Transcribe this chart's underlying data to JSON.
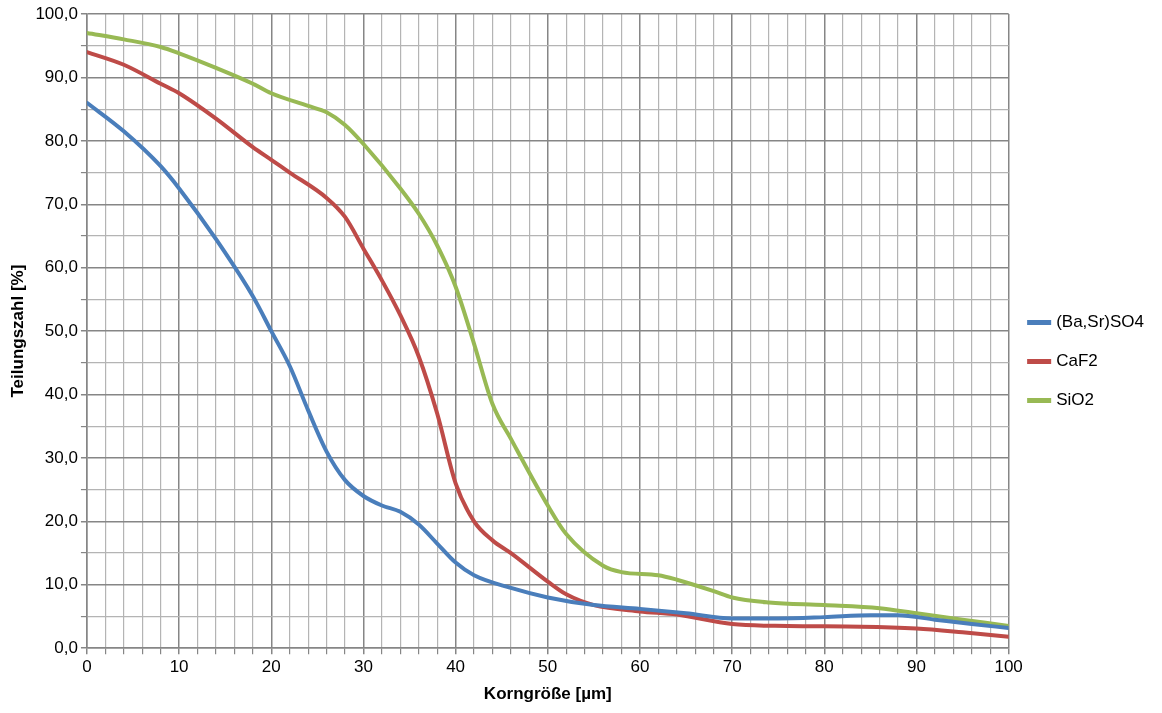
{
  "chart_data": {
    "type": "line",
    "xlabel": "Korngröße [µm]",
    "ylabel": "Teilungszahl [%]",
    "xlim": [
      0,
      100
    ],
    "ylim": [
      0,
      100
    ],
    "xticks": [
      0,
      {
        "value": 2,
        "label": null
      },
      {
        "value": 4,
        "label": null
      },
      {
        "value": 6,
        "label": null
      },
      {
        "value": 8,
        "label": null
      },
      10,
      {
        "value": 12,
        "label": null
      },
      {
        "value": 14,
        "label": null
      },
      {
        "value": 16,
        "label": null
      },
      {
        "value": 18,
        "label": null
      },
      20,
      {
        "value": 22,
        "label": null
      },
      {
        "value": 24,
        "label": null
      },
      {
        "value": 26,
        "label": null
      },
      {
        "value": 28,
        "label": null
      },
      30,
      {
        "value": 32,
        "label": null
      },
      {
        "value": 34,
        "label": null
      },
      {
        "value": 36,
        "label": null
      },
      {
        "value": 38,
        "label": null
      },
      40,
      {
        "value": 42,
        "label": null
      },
      {
        "value": 44,
        "label": null
      },
      {
        "value": 46,
        "label": null
      },
      {
        "value": 48,
        "label": null
      },
      50,
      {
        "value": 52,
        "label": null
      },
      {
        "value": 54,
        "label": null
      },
      {
        "value": 56,
        "label": null
      },
      {
        "value": 58,
        "label": null
      },
      60,
      {
        "value": 62,
        "label": null
      },
      {
        "value": 64,
        "label": null
      },
      {
        "value": 66,
        "label": null
      },
      {
        "value": 68,
        "label": null
      },
      70,
      {
        "value": 72,
        "label": null
      },
      {
        "value": 74,
        "label": null
      },
      {
        "value": 76,
        "label": null
      },
      {
        "value": 78,
        "label": null
      },
      80,
      {
        "value": 82,
        "label": null
      },
      {
        "value": 84,
        "label": null
      },
      {
        "value": 86,
        "label": null
      },
      {
        "value": 88,
        "label": null
      },
      90,
      {
        "value": 92,
        "label": null
      },
      {
        "value": 94,
        "label": null
      },
      {
        "value": 96,
        "label": null
      },
      {
        "value": 98,
        "label": null
      },
      100
    ],
    "yticks": [
      {
        "value": 0,
        "label": "0,0"
      },
      {
        "value": 5,
        "label": null
      },
      {
        "value": 10,
        "label": "10,0"
      },
      {
        "value": 15,
        "label": null
      },
      {
        "value": 20,
        "label": "20,0"
      },
      {
        "value": 25,
        "label": null
      },
      {
        "value": 30,
        "label": "30,0"
      },
      {
        "value": 35,
        "label": null
      },
      {
        "value": 40,
        "label": "40,0"
      },
      {
        "value": 45,
        "label": null
      },
      {
        "value": 50,
        "label": "50,0"
      },
      {
        "value": 55,
        "label": null
      },
      {
        "value": 60,
        "label": "60,0"
      },
      {
        "value": 65,
        "label": null
      },
      {
        "value": 70,
        "label": "70,0"
      },
      {
        "value": 75,
        "label": null
      },
      {
        "value": 80,
        "label": "80,0"
      },
      {
        "value": 85,
        "label": null
      },
      {
        "value": 90,
        "label": "90,0"
      },
      {
        "value": 95,
        "label": null
      },
      {
        "value": 100,
        "label": "100,0"
      }
    ],
    "grid": true,
    "legend": "right",
    "marker": "none",
    "line_style": "solid",
    "series": [
      {
        "name": "(Ba,Sr)SO4",
        "color": "#4a7ebb",
        "x": [
          0,
          4,
          8,
          10,
          14,
          18,
          20,
          22,
          24,
          26,
          28,
          30,
          32,
          34,
          36,
          38,
          40,
          42,
          46,
          50,
          55,
          60,
          65,
          70,
          75,
          80,
          85,
          88,
          92,
          96,
          100
        ],
        "values": [
          86,
          81.5,
          76,
          72.5,
          64.5,
          55.5,
          50,
          44.5,
          37.5,
          31,
          26.5,
          24,
          22.5,
          21.5,
          19.5,
          16.5,
          13.5,
          11.5,
          9.5,
          8,
          6.8,
          6.2,
          5.5,
          4.7,
          4.7,
          4.9,
          5.2,
          5.2,
          4.5,
          3.8,
          3.2
        ]
      },
      {
        "name": "CaF2",
        "color": "#be4b48",
        "x": [
          0,
          4,
          8,
          10,
          14,
          18,
          20,
          22,
          26,
          28,
          30,
          32,
          34,
          36,
          38,
          40,
          42,
          44,
          46,
          50,
          52,
          55,
          60,
          64,
          70,
          76,
          84,
          90,
          95,
          100
        ],
        "values": [
          94,
          92,
          89,
          87.5,
          83.5,
          79,
          77,
          75,
          71,
          68,
          63,
          58,
          52.5,
          46,
          37,
          26,
          20,
          17,
          15,
          10.5,
          8.5,
          6.8,
          5.8,
          5.3,
          3.8,
          3.5,
          3.4,
          3.1,
          2.5,
          1.8
        ]
      },
      {
        "name": "SiO2",
        "color": "#98b954",
        "x": [
          0,
          4,
          8,
          10,
          14,
          18,
          20,
          24,
          26,
          28,
          30,
          34,
          36,
          38,
          40,
          42,
          44,
          46,
          50,
          52,
          56,
          58,
          62,
          64,
          68,
          70,
          74,
          80,
          86,
          90,
          95,
          100
        ],
        "values": [
          97,
          96,
          94.8,
          93.8,
          91.5,
          89,
          87.5,
          85.5,
          84.5,
          82.5,
          79.5,
          72.5,
          68.5,
          63.5,
          57,
          48,
          38.5,
          33,
          22.5,
          18,
          13,
          12,
          11.5,
          10.8,
          9,
          8,
          7.2,
          6.8,
          6.3,
          5.5,
          4.5,
          3.5
        ]
      }
    ]
  }
}
